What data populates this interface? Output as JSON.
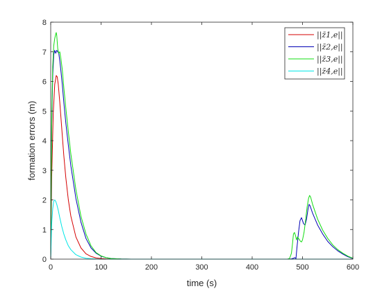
{
  "chart_data": {
    "type": "line",
    "title": "",
    "xlabel": "time (s)",
    "ylabel": "formation errors (m)",
    "xlim": [
      0,
      600
    ],
    "ylim": [
      0,
      8
    ],
    "xticks": [
      "0",
      "100",
      "200",
      "300",
      "400",
      "500",
      "600"
    ],
    "yticks": [
      "0",
      "1",
      "2",
      "3",
      "4",
      "5",
      "6",
      "7",
      "8"
    ],
    "grid": false,
    "legend_position": "top-right",
    "series": [
      {
        "name": "||z̄1,e||",
        "color": "#d40000",
        "x": [
          0,
          2,
          5,
          8,
          11,
          13,
          15,
          18,
          22,
          26,
          30,
          35,
          40,
          50,
          60,
          70,
          80,
          90,
          100,
          110,
          120,
          140,
          160,
          600
        ],
        "y": [
          0,
          2.8,
          4.9,
          5.9,
          6.2,
          6.15,
          5.9,
          5.3,
          4.4,
          3.5,
          2.75,
          2.0,
          1.45,
          0.75,
          0.38,
          0.18,
          0.09,
          0.04,
          0.02,
          0.01,
          0.005,
          0,
          0,
          0
        ]
      },
      {
        "name": "||z̄2,e||",
        "color": "#0000b4",
        "x": [
          0,
          2,
          4,
          6,
          8,
          10,
          12,
          14,
          16,
          18,
          20,
          23,
          26,
          30,
          35,
          40,
          50,
          60,
          70,
          80,
          90,
          100,
          110,
          120,
          140,
          160,
          470,
          478,
          482,
          485,
          487,
          489,
          492,
          495,
          498,
          500,
          502,
          505,
          508,
          511,
          513,
          515,
          520,
          530,
          540,
          550,
          560,
          570,
          580,
          590,
          600
        ],
        "y": [
          0,
          4.5,
          6.2,
          6.9,
          7.05,
          6.95,
          7.05,
          7.0,
          6.95,
          6.7,
          6.4,
          5.9,
          5.3,
          4.6,
          3.85,
          3.15,
          2.05,
          1.25,
          0.7,
          0.38,
          0.2,
          0.1,
          0.05,
          0.02,
          0.005,
          0,
          0,
          0.01,
          0.03,
          0.05,
          0.02,
          0.4,
          0.9,
          1.3,
          1.4,
          1.3,
          1.2,
          1.15,
          1.35,
          1.7,
          1.85,
          1.8,
          1.55,
          1.15,
          0.85,
          0.6,
          0.42,
          0.28,
          0.17,
          0.08,
          0.02
        ]
      },
      {
        "name": "||z̄3,e||",
        "color": "#10dc10",
        "x": [
          0,
          2,
          4,
          6,
          8,
          10,
          11,
          12,
          14,
          16,
          18,
          20,
          23,
          26,
          30,
          35,
          40,
          50,
          60,
          70,
          80,
          90,
          100,
          110,
          120,
          140,
          160,
          470,
          474,
          476,
          478,
          480,
          482,
          484,
          486,
          488,
          490,
          492,
          494,
          496,
          498,
          500,
          503,
          506,
          509,
          512,
          514,
          516,
          520,
          530,
          540,
          550,
          560,
          570,
          580,
          590,
          600
        ],
        "y": [
          0,
          4.8,
          6.5,
          7.2,
          7.45,
          7.6,
          7.65,
          7.55,
          7.1,
          6.95,
          7.0,
          6.8,
          6.4,
          5.8,
          5.1,
          4.3,
          3.55,
          2.35,
          1.45,
          0.85,
          0.45,
          0.22,
          0.11,
          0.05,
          0.02,
          0.005,
          0,
          0,
          0.02,
          0.1,
          0.2,
          0.5,
          0.85,
          0.9,
          0.8,
          0.65,
          0.75,
          0.7,
          0.65,
          0.6,
          0.58,
          0.65,
          0.9,
          1.3,
          1.75,
          2.05,
          2.15,
          2.1,
          1.85,
          1.35,
          0.98,
          0.7,
          0.48,
          0.32,
          0.2,
          0.1,
          0.03
        ]
      },
      {
        "name": "||z̄4,e||",
        "color": "#00e6e6",
        "x": [
          0,
          2,
          4,
          6,
          8,
          10,
          12,
          15,
          18,
          22,
          26,
          30,
          35,
          40,
          50,
          60,
          70,
          80,
          90,
          100,
          120,
          600
        ],
        "y": [
          0,
          1.2,
          1.7,
          1.95,
          2.0,
          1.95,
          1.85,
          1.65,
          1.4,
          1.1,
          0.85,
          0.65,
          0.45,
          0.32,
          0.15,
          0.07,
          0.03,
          0.015,
          0.005,
          0,
          0,
          0
        ]
      }
    ]
  }
}
